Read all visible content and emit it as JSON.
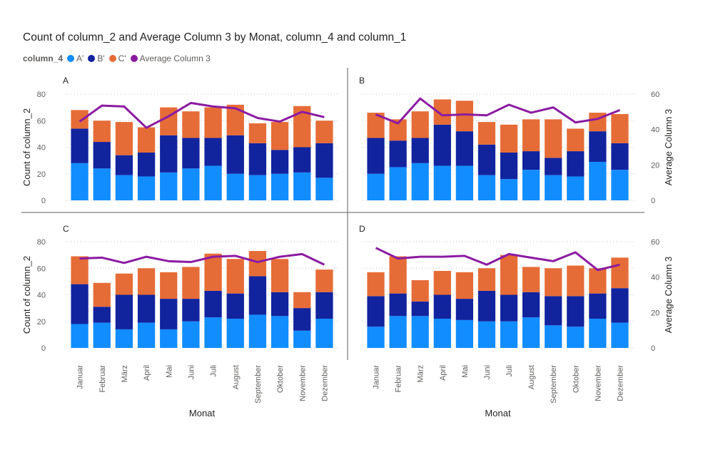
{
  "title": "Count of column_2 and Average Column 3 by Monat, column_4 and column_1",
  "legend": {
    "title": "column_4",
    "items": [
      {
        "label": "A'",
        "color": "#118DFF"
      },
      {
        "label": "B'",
        "color": "#12239E"
      },
      {
        "label": "C'",
        "color": "#E66C37"
      },
      {
        "label": "Average Column 3",
        "color": "#8B1BA1"
      }
    ]
  },
  "chart_data": {
    "type": "bar",
    "layout": "small-multiples 2x2, stacked bars with line on secondary axis",
    "categories": [
      "Januar",
      "Februar",
      "März",
      "April",
      "Mai",
      "Juni",
      "Juli",
      "August",
      "September",
      "Oktober",
      "November",
      "Dezember"
    ],
    "xlabel": "Monat",
    "ylabel": "Count of column_2",
    "y2label": "Average Column 3",
    "ylim": [
      0,
      80
    ],
    "yticks": [
      0,
      20,
      40,
      60,
      80
    ],
    "y2lim": [
      0,
      60
    ],
    "y2ticks": [
      0,
      20,
      40,
      60
    ],
    "grid": true,
    "legend_position": "top-left",
    "panels": [
      {
        "name": "A",
        "series": [
          {
            "name": "A'",
            "values": [
              28,
              24,
              19,
              18,
              21,
              24,
              26,
              20,
              19,
              20,
              21,
              17
            ]
          },
          {
            "name": "B'",
            "values": [
              26,
              20,
              15,
              18,
              28,
              23,
              21,
              29,
              24,
              18,
              19,
              26
            ]
          },
          {
            "name": "C'",
            "values": [
              14,
              16,
              25,
              19,
              21,
              20,
              23,
              23,
              15,
              21,
              31,
              17
            ]
          }
        ],
        "line": {
          "name": "Average Column 3",
          "values": [
            44.5,
            53.5,
            53,
            41,
            47.5,
            55,
            53,
            52,
            46.5,
            44.5,
            50,
            47
          ]
        }
      },
      {
        "name": "B",
        "series": [
          {
            "name": "A'",
            "values": [
              20,
              25,
              28,
              26,
              26,
              19,
              16,
              23,
              19,
              18,
              29,
              23
            ]
          },
          {
            "name": "B'",
            "values": [
              27,
              20,
              19,
              31,
              26,
              23,
              20,
              14,
              13,
              19,
              23,
              20
            ]
          },
          {
            "name": "C'",
            "values": [
              19,
              16,
              20,
              19,
              23,
              17,
              21,
              24,
              29,
              17,
              14,
              22
            ]
          }
        ],
        "line": {
          "name": "Average Column 3",
          "values": [
            48.5,
            43.5,
            57.5,
            48,
            48.5,
            48,
            54,
            49.5,
            52.5,
            44,
            46,
            51
          ]
        }
      },
      {
        "name": "C",
        "series": [
          {
            "name": "A'",
            "values": [
              18,
              19,
              14,
              19,
              14,
              20,
              23,
              22,
              25,
              24,
              13,
              22
            ]
          },
          {
            "name": "B'",
            "values": [
              30,
              12,
              26,
              21,
              23,
              17,
              20,
              19,
              29,
              18,
              17,
              20
            ]
          },
          {
            "name": "C'",
            "values": [
              21,
              18,
              16,
              20,
              20,
              24,
              28,
              26,
              19,
              25,
              12,
              17
            ]
          }
        ],
        "line": {
          "name": "Average Column 3",
          "values": [
            50.5,
            51,
            48,
            51.5,
            49,
            48.5,
            51.5,
            52,
            48.5,
            51.5,
            53,
            47
          ]
        }
      },
      {
        "name": "D",
        "series": [
          {
            "name": "A'",
            "values": [
              16,
              24,
              24,
              22,
              21,
              20,
              20,
              23,
              17,
              16,
              22,
              19
            ]
          },
          {
            "name": "B'",
            "values": [
              23,
              17,
              11,
              18,
              16,
              23,
              20,
              19,
              22,
              23,
              19,
              26
            ]
          },
          {
            "name": "C'",
            "values": [
              18,
              28,
              16,
              18,
              20,
              17,
              30,
              19,
              21,
              23,
              19,
              23
            ]
          }
        ],
        "line": {
          "name": "Average Column 3",
          "values": [
            56.5,
            50.5,
            51.5,
            51.5,
            52,
            47,
            53,
            51,
            49,
            54,
            44,
            47
          ]
        }
      }
    ]
  }
}
